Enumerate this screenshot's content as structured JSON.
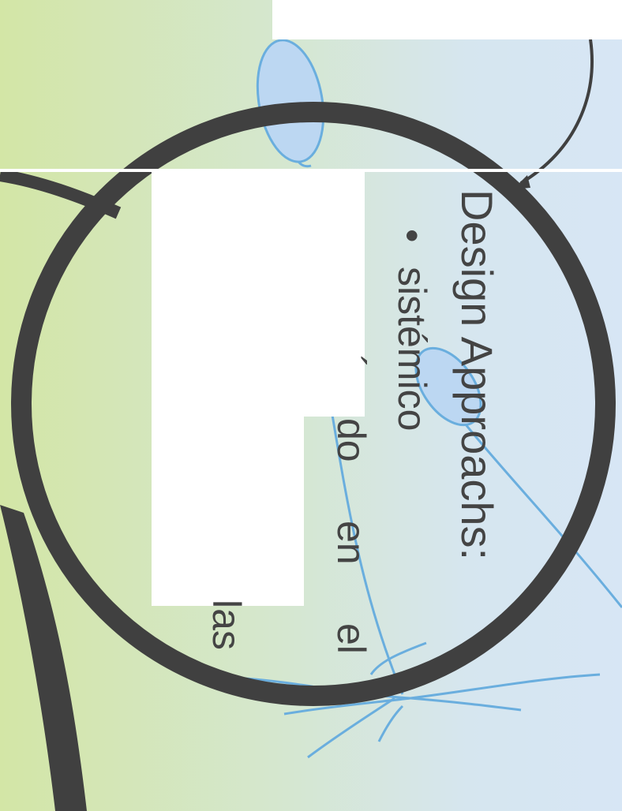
{
  "slide": {
    "title": "Design Approachs:",
    "bullet_symbol": "•",
    "bullet_text": "sistémico",
    "fragments": {
      "accent": "´",
      "do": "do",
      "en": "en",
      "el": "el",
      "las": "las"
    }
  },
  "colors": {
    "background_left": "#d3e6a6",
    "background_right": "#d7e6f5",
    "ring": "#404040",
    "leaf_fill": "#bcd7f2",
    "leaf_stroke": "#6aaede",
    "text": "#444444"
  },
  "icons": [
    "magnifier-ring-icon",
    "leaf-icon",
    "curved-arrow-icon",
    "branch-lines-icon"
  ]
}
